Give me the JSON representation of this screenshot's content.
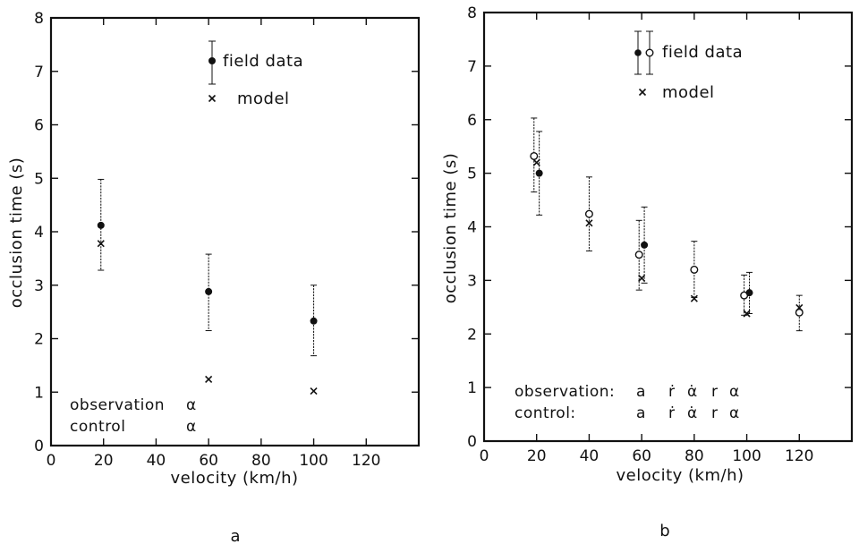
{
  "chart_data": [
    {
      "type": "scatter",
      "panel_label": "a",
      "title": "",
      "xlabel": "velocity (km/h)",
      "ylabel": "occlusion time (s)",
      "xlim": [
        0,
        140
      ],
      "ylim": [
        0,
        8
      ],
      "x_ticks": [
        0,
        20,
        40,
        60,
        80,
        100,
        120
      ],
      "y_ticks": [
        0,
        1,
        2,
        3,
        4,
        5,
        6,
        7,
        8
      ],
      "legend": {
        "position": "top",
        "entries": [
          {
            "label": "field data",
            "marker": "filled-circle-errorbar"
          },
          {
            "label": "model",
            "marker": "cross"
          }
        ]
      },
      "series": [
        {
          "name": "field data",
          "marker": "filled-circle",
          "points": [
            {
              "x": 19,
              "y": 4.12,
              "err_low": 3.28,
              "err_high": 4.98
            },
            {
              "x": 60,
              "y": 2.88,
              "err_low": 2.15,
              "err_high": 3.58
            },
            {
              "x": 100,
              "y": 2.33,
              "err_low": 1.68,
              "err_high": 3.0
            }
          ]
        },
        {
          "name": "model",
          "marker": "cross",
          "points": [
            {
              "x": 19,
              "y": 3.78
            },
            {
              "x": 60,
              "y": 1.24
            },
            {
              "x": 100,
              "y": 1.02
            }
          ]
        }
      ],
      "annotations": [
        {
          "row": 1,
          "text": "observation",
          "symbols": [
            "α"
          ]
        },
        {
          "row": 2,
          "text": "control",
          "symbols": [
            "α"
          ]
        }
      ]
    },
    {
      "type": "scatter",
      "panel_label": "b",
      "title": "",
      "xlabel": "velocity (km/h)",
      "ylabel": "occlusion time (s)",
      "xlim": [
        0,
        140
      ],
      "ylim": [
        0,
        8
      ],
      "x_ticks": [
        0,
        20,
        40,
        60,
        80,
        100,
        120
      ],
      "y_ticks": [
        0,
        1,
        2,
        3,
        4,
        5,
        6,
        7,
        8
      ],
      "legend": {
        "position": "top",
        "entries": [
          {
            "label": "field data",
            "marker": "filled-and-open-circle-errorbar"
          },
          {
            "label": "model",
            "marker": "cross"
          }
        ]
      },
      "series": [
        {
          "name": "",
          "marker": "open-circle",
          "points": [
            {
              "x": 19,
              "y": 5.32,
              "err_low": 4.65,
              "err_high": 6.03
            },
            {
              "x": 40,
              "y": 4.24,
              "err_low": 3.55,
              "err_high": 4.93
            },
            {
              "x": 59,
              "y": 3.48,
              "err_low": 2.82,
              "err_high": 4.12
            },
            {
              "x": 80,
              "y": 3.2,
              "err_low": 2.68,
              "err_high": 3.73
            },
            {
              "x": 99,
              "y": 2.72,
              "err_low": 2.35,
              "err_high": 3.1
            },
            {
              "x": 120,
              "y": 2.4,
              "err_low": 2.06,
              "err_high": 2.72
            }
          ]
        },
        {
          "name": "",
          "marker": "filled-circle",
          "points": [
            {
              "x": 21,
              "y": 5.0,
              "err_low": 4.22,
              "err_high": 5.78
            },
            {
              "x": 61,
              "y": 3.66,
              "err_low": 2.95,
              "err_high": 4.37
            },
            {
              "x": 101,
              "y": 2.77,
              "err_low": 2.38,
              "err_high": 3.15
            }
          ]
        },
        {
          "name": "model",
          "marker": "cross",
          "points": [
            {
              "x": 20,
              "y": 5.2
            },
            {
              "x": 40,
              "y": 4.07
            },
            {
              "x": 60,
              "y": 3.04
            },
            {
              "x": 80,
              "y": 2.66
            },
            {
              "x": 100,
              "y": 2.38
            },
            {
              "x": 120,
              "y": 2.49
            }
          ]
        }
      ],
      "annotations": [
        {
          "row": 1,
          "text": "observation:",
          "symbols": [
            "a",
            "ṙ",
            "α̇",
            "r",
            "α"
          ]
        },
        {
          "row": 2,
          "text": "control:",
          "symbols": [
            "a",
            "ṙ",
            "α̇",
            "r",
            "α"
          ]
        }
      ]
    }
  ]
}
